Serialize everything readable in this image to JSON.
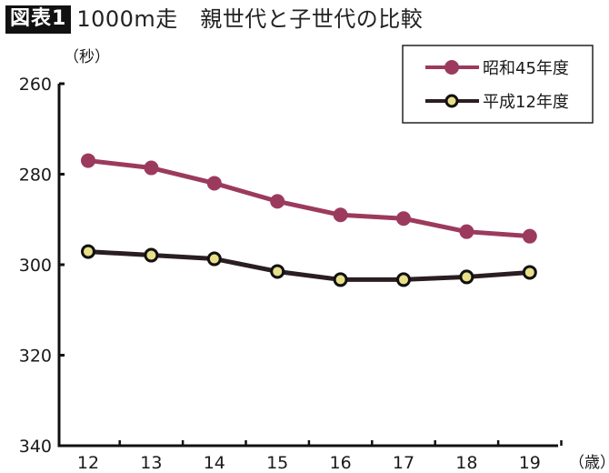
{
  "header": {
    "badge": "図表1",
    "title": "1000m走　親世代と子世代の比較"
  },
  "axes": {
    "y_unit": "（秒）",
    "x_unit": "（歳）",
    "y_ticks": [
      "260",
      "280",
      "300",
      "320",
      "340"
    ],
    "x_ticks": [
      "12",
      "13",
      "14",
      "15",
      "16",
      "17",
      "18",
      "19"
    ]
  },
  "legend": {
    "items": [
      {
        "label": "昭和45年度",
        "color": "#9c3a5e",
        "marker": "filled-circle"
      },
      {
        "label": "平成12年度",
        "color": "#2a1e22",
        "marker_fill": "#e8df8a",
        "marker": "outlined-circle"
      }
    ]
  },
  "chart_data": {
    "type": "line",
    "title": "1000m走　親世代と子世代の比較",
    "xlabel": "（歳）",
    "ylabel": "（秒）",
    "x": [
      12,
      13,
      14,
      15,
      16,
      17,
      18,
      19
    ],
    "categories": [
      "12",
      "13",
      "14",
      "15",
      "16",
      "17",
      "18",
      "19"
    ],
    "ylim": [
      260,
      340
    ],
    "y_inverted": true,
    "y_ticks": [
      260,
      280,
      300,
      320,
      340
    ],
    "grid": false,
    "legend_position": "top-right",
    "series": [
      {
        "name": "昭和45年度",
        "color": "#9c3a5e",
        "values": [
          277.0,
          278.6,
          282.0,
          286.0,
          289.0,
          289.8,
          292.7,
          293.7
        ]
      },
      {
        "name": "平成12年度",
        "color": "#2a1e22",
        "marker_fill": "#e8df8a",
        "values": [
          297.1,
          297.9,
          298.7,
          301.5,
          303.3,
          303.3,
          302.7,
          301.7
        ]
      }
    ]
  }
}
